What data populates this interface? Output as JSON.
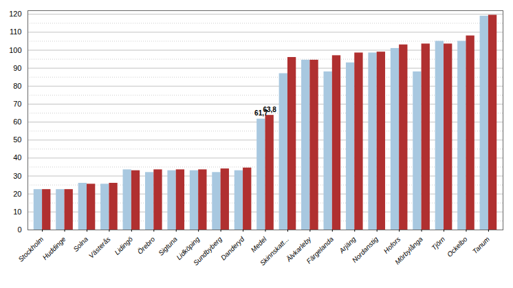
{
  "chart_data": {
    "type": "bar",
    "categories": [
      "Stockholm",
      "Huddinge",
      "Solna",
      "Västerås",
      "Lidingö",
      "Örebro",
      "Sigtuna",
      "Lidköping",
      "Sundbyberg",
      "Danderyd",
      "Medel",
      "Skinnskatt...",
      "Älvkarleby",
      "Färgelanda",
      "Arjäng",
      "Nordanstig",
      "Hofors",
      "Mörbylånga",
      "Tjörn",
      "Ockelbo",
      "Tanum"
    ],
    "series": [
      {
        "color": "#a8c8e0",
        "values": [
          22.5,
          22.5,
          26.0,
          25.5,
          33.5,
          32.0,
          33.0,
          33.0,
          32.0,
          33.0,
          61.7,
          87.0,
          94.5,
          88.0,
          93.0,
          98.5,
          101.0,
          88.0,
          105.0,
          105.0,
          119.0
        ]
      },
      {
        "color": "#b03030",
        "values": [
          22.5,
          22.5,
          25.5,
          26.0,
          33.0,
          33.5,
          33.5,
          33.5,
          34.0,
          34.5,
          63.8,
          96.0,
          94.5,
          97.0,
          98.5,
          99.0,
          103.0,
          103.5,
          103.5,
          108.0,
          119.5
        ]
      }
    ],
    "annotations": [
      {
        "text": "61,7",
        "category": "Medel",
        "series": 0,
        "value": 61.7
      },
      {
        "text": "63,8",
        "category": "Medel",
        "series": 1,
        "value": 63.8
      }
    ],
    "ylim": [
      0,
      122
    ],
    "yticks": [
      0,
      10,
      20,
      30,
      40,
      50,
      60,
      70,
      80,
      90,
      100,
      110,
      120
    ],
    "grid": true
  }
}
